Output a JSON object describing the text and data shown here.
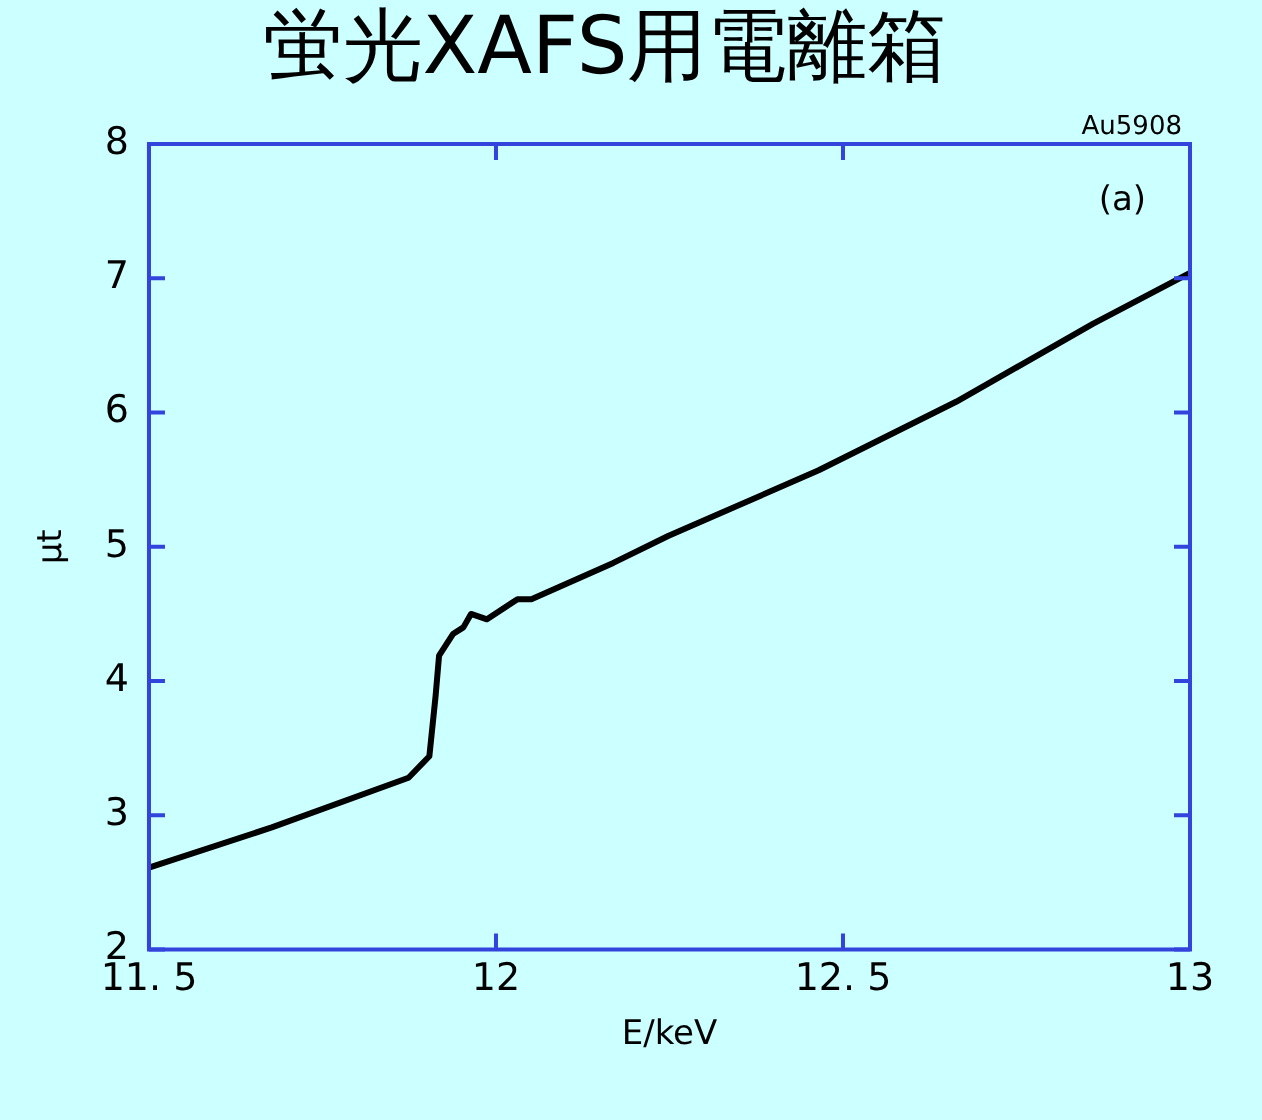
{
  "chart_data": {
    "type": "line",
    "title": "蛍光XAFS用電離箱",
    "xlabel": "E/keV",
    "ylabel": "μt",
    "annotations": [
      "Au5908",
      "(a)"
    ],
    "x": [
      11.5,
      11.677,
      11.874,
      11.904,
      11.913,
      11.918,
      11.938,
      11.953,
      11.964,
      11.987,
      12.031,
      12.051,
      12.169,
      12.248,
      12.465,
      12.663,
      12.86,
      13.0
    ],
    "series": [
      {
        "color": "#000000",
        "values": [
          2.61,
          2.91,
          3.28,
          3.44,
          3.89,
          4.19,
          4.35,
          4.4,
          4.5,
          4.46,
          4.61,
          4.61,
          4.88,
          5.08,
          5.57,
          6.08,
          6.66,
          7.04
        ]
      }
    ],
    "xlim": [
      11.5,
      13
    ],
    "xticks": [
      {
        "value": 11.5,
        "label": "11. 5"
      },
      12,
      {
        "value": 12.5,
        "label": "12. 5"
      },
      13
    ],
    "ylim": [
      2,
      8
    ],
    "yticks": [
      2,
      3,
      4,
      5,
      6,
      7,
      8
    ],
    "grid": false,
    "legend": false,
    "marker": "none",
    "line_style": "solid"
  }
}
